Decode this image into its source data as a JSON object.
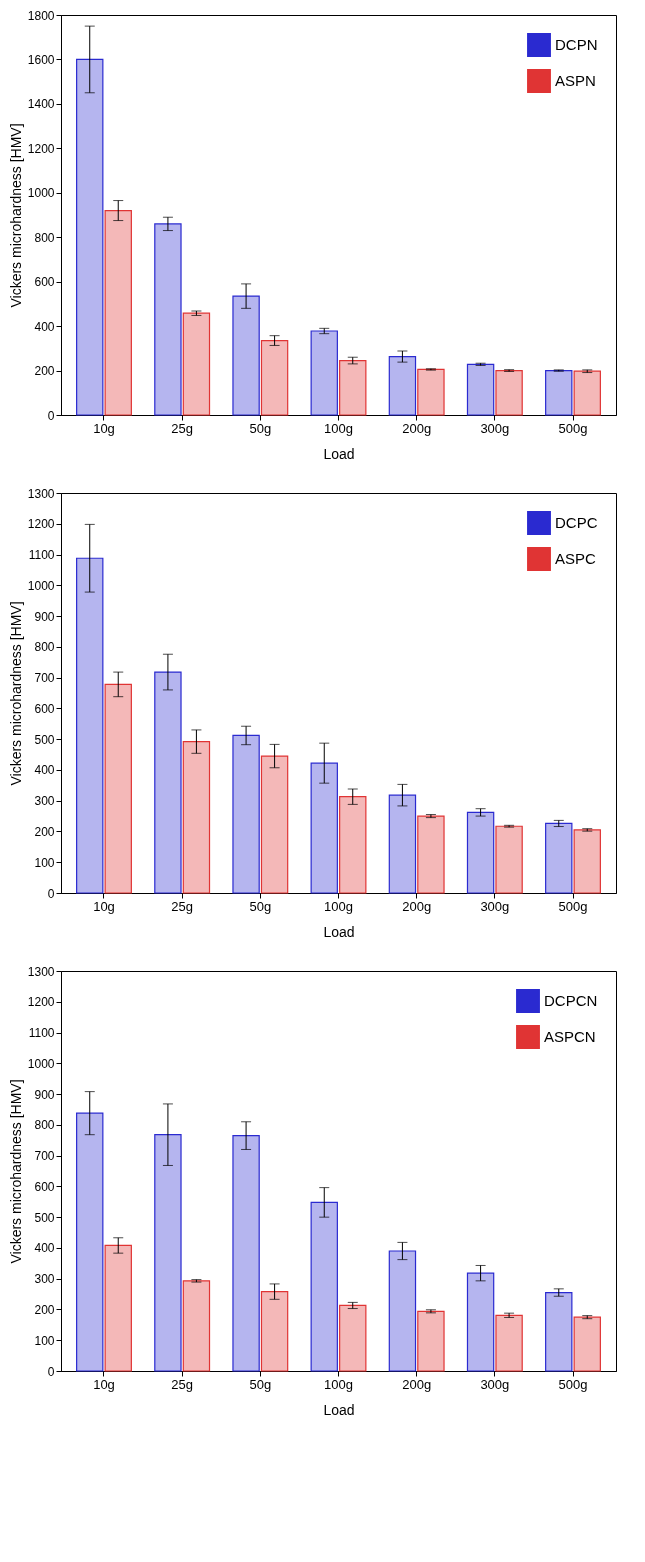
{
  "chart_data": [
    {
      "type": "bar",
      "xlabel": "Load",
      "ylabel": "Vickers microhardness [HMV]",
      "categories": [
        "10g",
        "25g",
        "50g",
        "100g",
        "200g",
        "300g",
        "500g"
      ],
      "ylim": [
        0,
        1800
      ],
      "yticks": [
        0,
        200,
        400,
        600,
        800,
        1000,
        1200,
        1400,
        1600,
        1800
      ],
      "grid": false,
      "legend": "top right",
      "series": [
        {
          "name": "DCPN",
          "color": "#2a2ad0",
          "values": [
            1600,
            860,
            535,
            378,
            263,
            228,
            200
          ],
          "errors": [
            150,
            30,
            55,
            12,
            25,
            5,
            3
          ]
        },
        {
          "name": "ASPN",
          "color": "#e03434",
          "values": [
            920,
            458,
            335,
            245,
            205,
            200,
            197
          ],
          "errors": [
            45,
            10,
            22,
            15,
            3,
            4,
            6
          ]
        }
      ]
    },
    {
      "type": "bar",
      "xlabel": "Load",
      "ylabel": "Vickers microhardness [HMV]",
      "categories": [
        "10g",
        "25g",
        "50g",
        "100g",
        "200g",
        "300g",
        "500g"
      ],
      "ylim": [
        0,
        1300
      ],
      "yticks": [
        0,
        100,
        200,
        300,
        400,
        500,
        600,
        700,
        800,
        900,
        1000,
        1100,
        1200,
        1300
      ],
      "grid": false,
      "legend": "top right",
      "series": [
        {
          "name": "DCPC",
          "color": "#2a2ad0",
          "values": [
            1088,
            718,
            512,
            422,
            318,
            262,
            226
          ],
          "errors": [
            110,
            58,
            30,
            65,
            35,
            12,
            10
          ]
        },
        {
          "name": "ASPC",
          "color": "#e03434",
          "values": [
            678,
            492,
            445,
            313,
            250,
            217,
            205
          ],
          "errors": [
            40,
            38,
            38,
            25,
            5,
            3,
            4
          ]
        }
      ]
    },
    {
      "type": "bar",
      "xlabel": "Load",
      "ylabel": "Vickers microhardness [HMV]",
      "categories": [
        "10g",
        "25g",
        "50g",
        "100g",
        "200g",
        "300g",
        "500g"
      ],
      "ylim": [
        0,
        1300
      ],
      "yticks": [
        0,
        100,
        200,
        300,
        400,
        500,
        600,
        700,
        800,
        900,
        1000,
        1100,
        1200,
        1300
      ],
      "grid": false,
      "legend": "top right",
      "series": [
        {
          "name": "DCPCN",
          "color": "#2a2ad0",
          "values": [
            838,
            768,
            765,
            548,
            390,
            318,
            255
          ],
          "errors": [
            70,
            100,
            45,
            48,
            28,
            25,
            12
          ]
        },
        {
          "name": "ASPCN",
          "color": "#e03434",
          "values": [
            408,
            293,
            258,
            213,
            194,
            181,
            175
          ],
          "errors": [
            25,
            4,
            25,
            10,
            5,
            7,
            5
          ]
        }
      ]
    }
  ]
}
